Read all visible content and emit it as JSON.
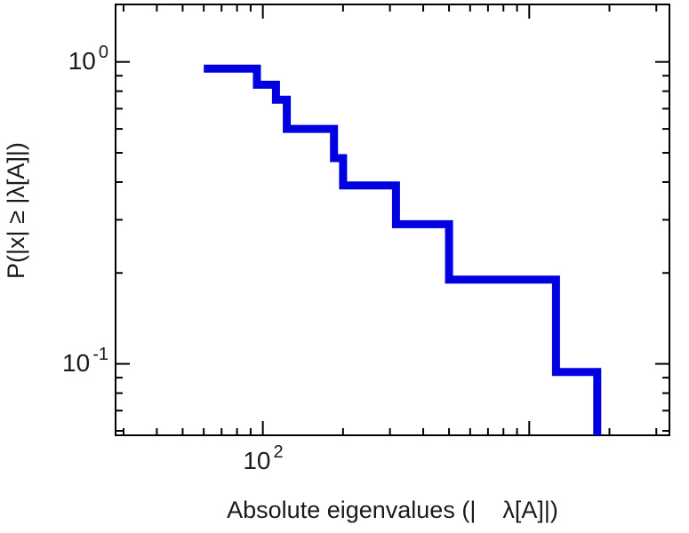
{
  "figure": {
    "background": "#ffffff",
    "axis_color": "#000000",
    "text_color": "#1a1a1a"
  },
  "chart_data": {
    "type": "line",
    "subtype": "step-survival-function",
    "title": "",
    "xlabel": "Absolute eigenvalues (|    λ[A]|)",
    "ylabel": "P(|x| ≥ |λ[A]|)",
    "xscale": "log",
    "yscale": "log",
    "xlim": [
      28,
      3360
    ],
    "ylim": [
      0.058,
      1.55
    ],
    "grid": false,
    "legend": false,
    "x_tick_labels": [
      {
        "base": "10",
        "exp": "2",
        "value": 100
      }
    ],
    "y_tick_labels": [
      {
        "base": "10",
        "exp": "0",
        "value": 1
      },
      {
        "base": "10",
        "exp": "-1",
        "value": 0.1
      }
    ],
    "line_color": "#0000e0",
    "line_width": 9,
    "steps": [
      {
        "x": 60,
        "p": 0.95
      },
      {
        "x": 95,
        "p": 0.84
      },
      {
        "x": 112,
        "p": 0.75
      },
      {
        "x": 123,
        "p": 0.6
      },
      {
        "x": 185,
        "p": 0.48
      },
      {
        "x": 200,
        "p": 0.39
      },
      {
        "x": 316,
        "p": 0.29
      },
      {
        "x": 500,
        "p": 0.19
      },
      {
        "x": 1260,
        "p": 0.094
      }
    ],
    "final_drop_x": 1800
  }
}
